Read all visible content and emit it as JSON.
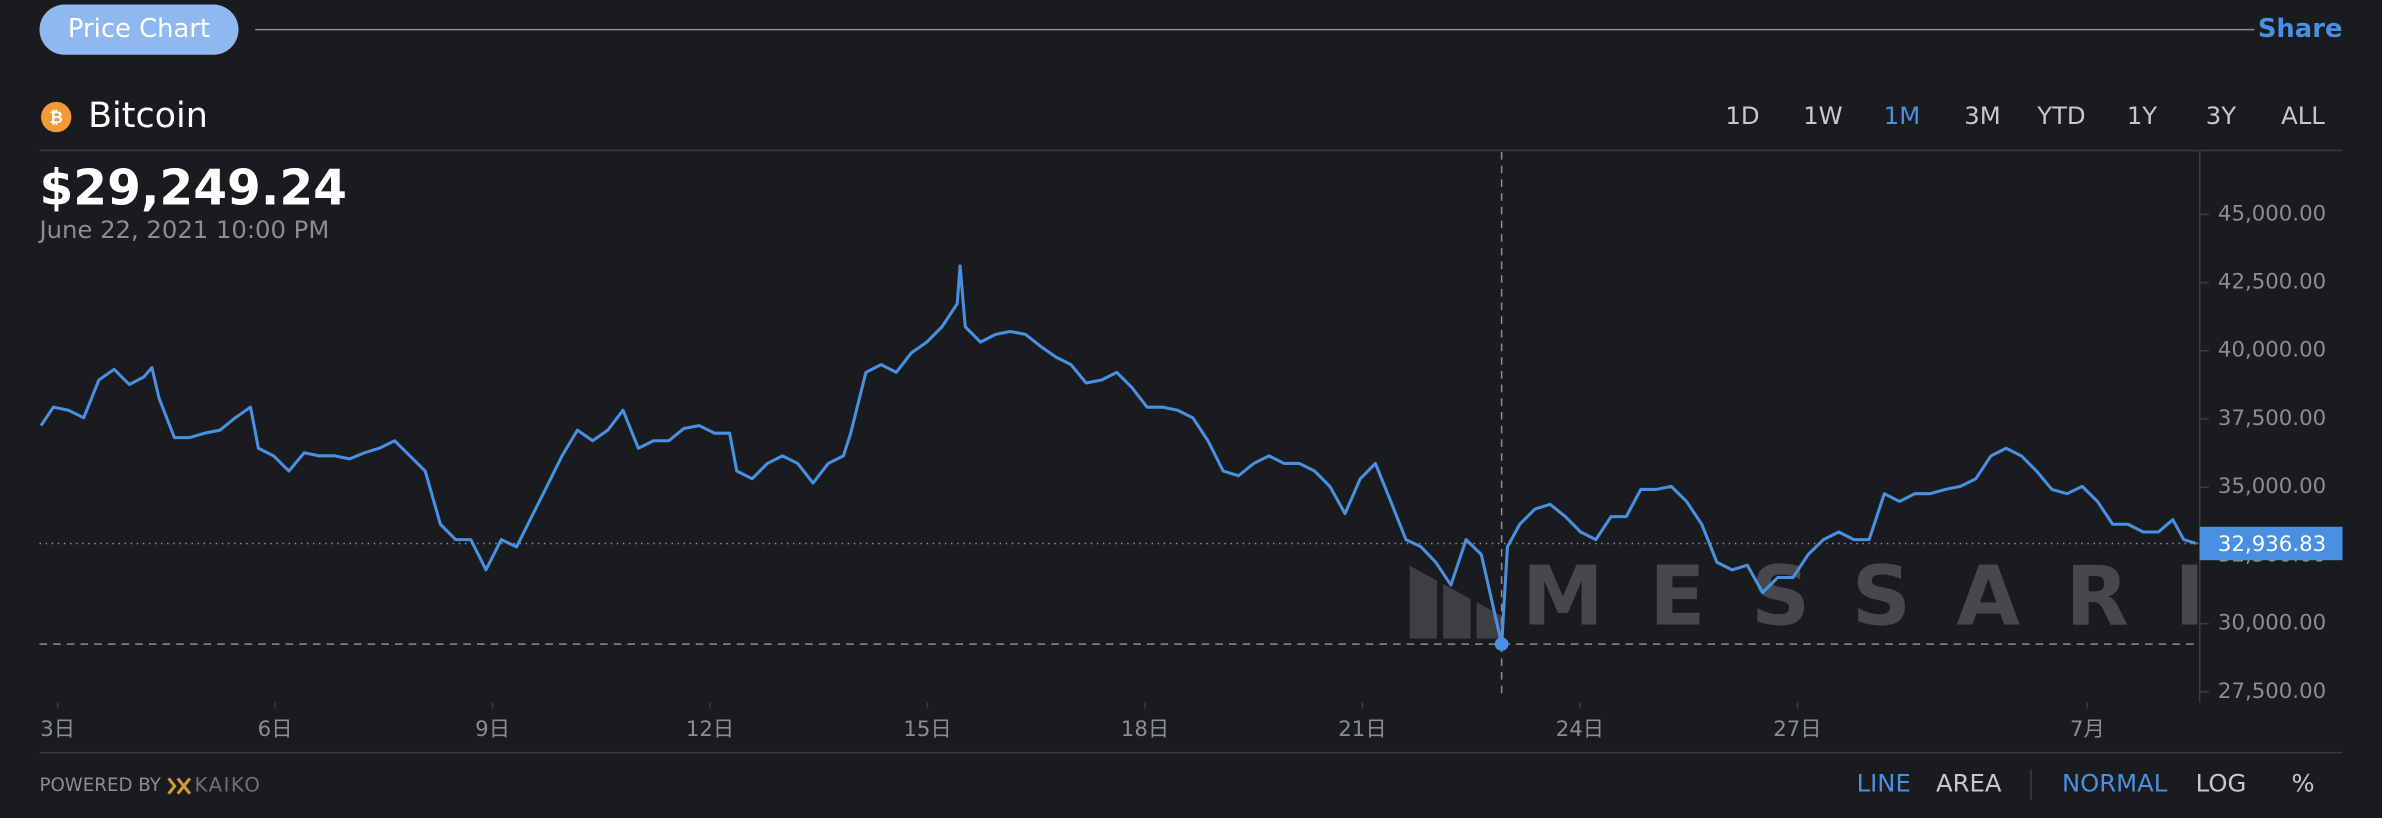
{
  "header": {
    "tab": "Price Chart",
    "share": "Share",
    "asset": "Bitcoin",
    "ranges": [
      "1D",
      "1W",
      "1M",
      "3M",
      "YTD",
      "1Y",
      "3Y",
      "ALL"
    ],
    "active_range": "1M"
  },
  "footer": {
    "powered_by": "POWERED BY",
    "provider": "KAIKO",
    "chart_styles": [
      "LINE",
      "AREA"
    ],
    "active_style": "LINE",
    "scales": [
      "NORMAL",
      "LOG",
      "%"
    ],
    "active_scale": "NORMAL"
  },
  "chart_data": {
    "type": "line",
    "watermark": "MESSARI",
    "color": "#4a90e2",
    "hover": {
      "x": 22.92,
      "label": "$29,249.24",
      "date": "June 22, 2021 10:00 PM"
    },
    "last_label": "32,936.83",
    "x": [
      2.77,
      2.94,
      3.15,
      3.36,
      3.57,
      3.78,
      3.99,
      4.19,
      4.3,
      4.4,
      4.61,
      4.82,
      5.03,
      5.24,
      5.45,
      5.66,
      5.77,
      5.98,
      6.19,
      6.4,
      6.61,
      6.82,
      7.03,
      7.23,
      7.44,
      7.65,
      7.86,
      8.07,
      8.28,
      8.49,
      8.7,
      8.91,
      9.12,
      9.33,
      9.54,
      9.75,
      9.96,
      10.17,
      10.38,
      10.59,
      10.8,
      11.01,
      11.22,
      11.43,
      11.64,
      11.85,
      12.06,
      12.27,
      12.37,
      12.58,
      12.79,
      13.0,
      13.21,
      13.42,
      13.63,
      13.84,
      13.94,
      14.15,
      14.36,
      14.57,
      14.78,
      14.99,
      15.2,
      15.41,
      15.45,
      15.52,
      15.73,
      15.94,
      16.14,
      16.35,
      16.56,
      16.77,
      16.98,
      17.19,
      17.4,
      17.61,
      17.82,
      18.03,
      18.24,
      18.45,
      18.66,
      18.87,
      19.08,
      19.29,
      19.5,
      19.71,
      19.92,
      20.13,
      20.34,
      20.55,
      20.76,
      20.97,
      21.18,
      21.39,
      21.6,
      21.81,
      22.01,
      22.22,
      22.43,
      22.64,
      22.92,
      23.0,
      23.17,
      23.38,
      23.59,
      23.8,
      24.01,
      24.22,
      24.43,
      24.64,
      24.84,
      25.05,
      25.26,
      25.47,
      25.68,
      25.89,
      26.1,
      26.31,
      26.52,
      26.73,
      26.94,
      27.15,
      27.36,
      27.57,
      27.78,
      27.99,
      28.2,
      28.41,
      28.62,
      28.83,
      29.04,
      29.25,
      29.46,
      29.67,
      29.88,
      30.09,
      30.3,
      30.51,
      30.72,
      30.93,
      31.14,
      31.35,
      31.56,
      31.77,
      31.98,
      32.18,
      32.33,
      32.5
    ],
    "values": [
      37260,
      37930,
      37820,
      37540,
      38930,
      39320,
      38760,
      39040,
      39380,
      38260,
      36820,
      36820,
      36980,
      37090,
      37540,
      37930,
      36430,
      36150,
      35590,
      36260,
      36150,
      36150,
      36040,
      36260,
      36430,
      36700,
      36150,
      35590,
      33640,
      33080,
      33080,
      31970,
      33080,
      32810,
      33920,
      35030,
      36150,
      37090,
      36700,
      37090,
      37820,
      36430,
      36700,
      36700,
      37150,
      37260,
      36980,
      36980,
      35590,
      35310,
      35870,
      36150,
      35870,
      35150,
      35870,
      36150,
      36980,
      39210,
      39490,
      39210,
      39930,
      40320,
      40880,
      41720,
      43110,
      40880,
      40320,
      40600,
      40710,
      40600,
      40160,
      39770,
      39490,
      38820,
      38930,
      39210,
      38650,
      37930,
      37930,
      37820,
      37540,
      36700,
      35590,
      35420,
      35870,
      36150,
      35870,
      35870,
      35590,
      35030,
      34030,
      35310,
      35870,
      34480,
      33080,
      32810,
      32250,
      31410,
      33080,
      32530,
      29249.24,
      32810,
      33640,
      34200,
      34370,
      33920,
      33360,
      33080,
      33920,
      33920,
      34920,
      34920,
      35030,
      34480,
      33640,
      32250,
      31970,
      32140,
      31140,
      31690,
      31690,
      32530,
      33080,
      33360,
      33080,
      33080,
      34760,
      34480,
      34760,
      34760,
      34920,
      35030,
      35310,
      36150,
      36430,
      36150,
      35590,
      34920,
      34760,
      35030,
      34480,
      33640,
      33640,
      33360,
      33360,
      33810,
      33080,
      32936.83
    ],
    "xlim": [
      2.75,
      32.55
    ],
    "xticks": [
      {
        "value": 3,
        "label": "3日"
      },
      {
        "value": 6,
        "label": "6日"
      },
      {
        "value": 9,
        "label": "9日"
      },
      {
        "value": 12,
        "label": "12日"
      },
      {
        "value": 15,
        "label": "15日"
      },
      {
        "value": 18,
        "label": "18日"
      },
      {
        "value": 21,
        "label": "21日"
      },
      {
        "value": 24,
        "label": "24日"
      },
      {
        "value": 27,
        "label": "27日"
      },
      {
        "value": 31,
        "label": "7月"
      }
    ],
    "ylim": [
      27222,
      47283
    ],
    "yticks": [
      {
        "value": 27500,
        "label": "27,500.00"
      },
      {
        "value": 30000,
        "label": "30,000.00"
      },
      {
        "value": 32500,
        "label": "32,500.00"
      },
      {
        "value": 35000,
        "label": "35,000.00"
      },
      {
        "value": 37500,
        "label": "37,500.00"
      },
      {
        "value": 40000,
        "label": "40,000.00"
      },
      {
        "value": 42500,
        "label": "42,500.00"
      },
      {
        "value": 45000,
        "label": "45,000.00"
      }
    ]
  }
}
